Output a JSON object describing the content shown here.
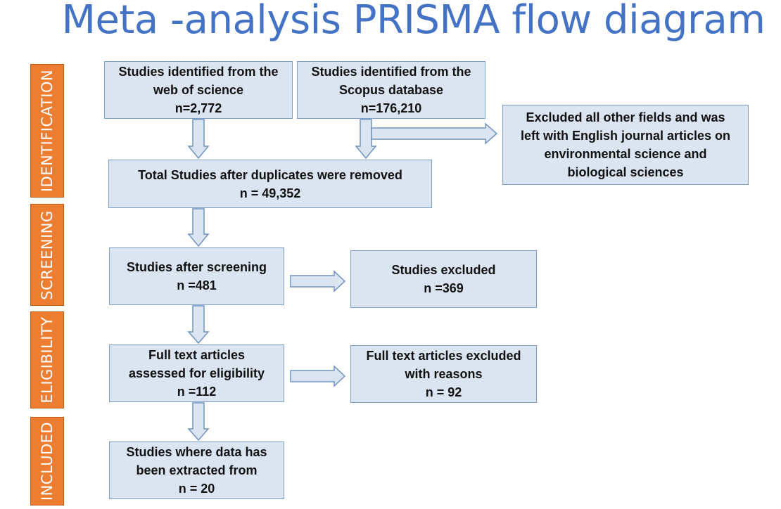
{
  "title": "Meta -analysis PRISMA flow diagram",
  "stages": {
    "identification": "IDENTIFICATION",
    "screening": "SCREENING",
    "eligibility": "ELIGIBILITY",
    "included": "INCLUDED"
  },
  "boxes": {
    "wos": {
      "lines": [
        "Studies identified from the",
        "web of science",
        "n=2,772"
      ]
    },
    "scopus": {
      "lines": [
        "Studies identified from the",
        "Scopus database",
        "n=176,210"
      ]
    },
    "excluded_fields": {
      "lines": [
        "Excluded all other fields and was",
        "left with English journal articles on",
        "environmental science and",
        "biological sciences"
      ]
    },
    "after_duplicates": {
      "lines": [
        "Total Studies after duplicates were removed",
        "n = 49,352"
      ]
    },
    "after_screening": {
      "lines": [
        "Studies after screening",
        "n =481"
      ]
    },
    "studies_excluded": {
      "lines": [
        "Studies excluded",
        "n =369"
      ]
    },
    "full_text_assessed": {
      "lines": [
        "Full text articles",
        "assessed for eligibility",
        "n =112"
      ]
    },
    "full_text_excluded": {
      "lines": [
        "Full text articles excluded",
        "with reasons",
        "n = 92"
      ]
    },
    "included": {
      "lines": [
        "Studies where data has",
        "been extracted from",
        "n = 20"
      ]
    }
  },
  "colors": {
    "title": "#4472c4",
    "stage_fill": "#ed7d31",
    "box_fill": "#dae5f1",
    "box_border": "#7c9ec6",
    "arrow_fill": "#dae5f1",
    "arrow_stroke": "#6f93bf"
  }
}
